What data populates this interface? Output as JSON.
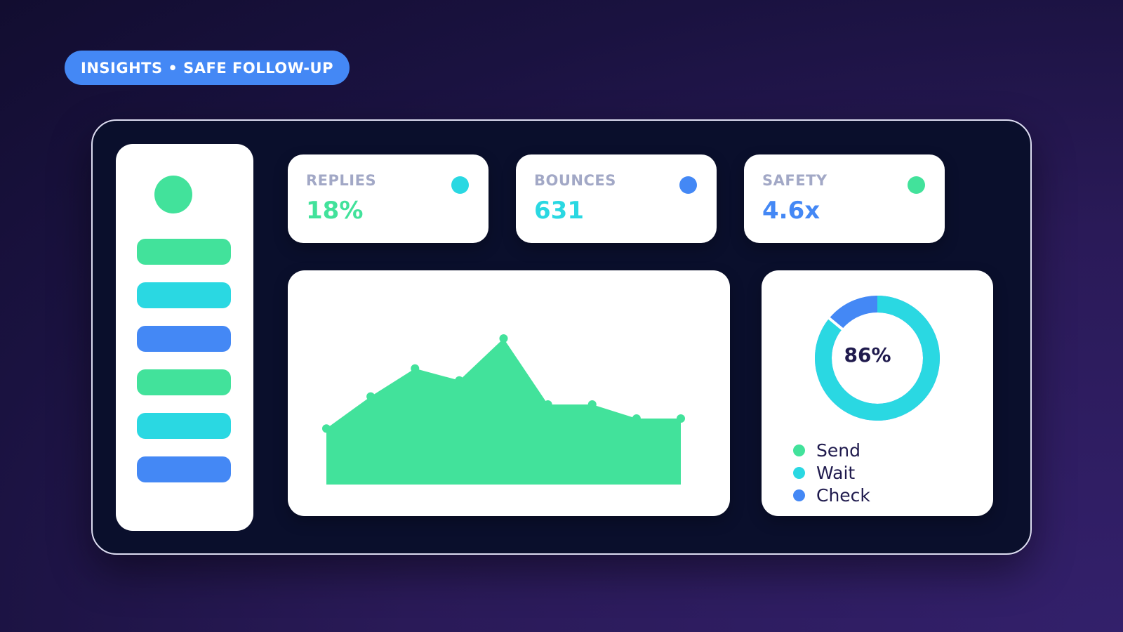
{
  "header": {
    "tag_label": "INSIGHTS • SAFE FOLLOW-UP"
  },
  "colors": {
    "green": "#42e29b",
    "cyan": "#2ad8e2",
    "blue": "#4488f5",
    "navy_text": "#1f1a4d",
    "label_gray": "#a2a8c6",
    "panel_bg": "#0a0f2c"
  },
  "sidebar": {
    "avatar_icon": "avatar-circle",
    "items": [
      {
        "color": "#42e29b"
      },
      {
        "color": "#2ad8e2"
      },
      {
        "color": "#4488f5"
      },
      {
        "color": "#42e29b"
      },
      {
        "color": "#2ad8e2"
      },
      {
        "color": "#4488f5"
      }
    ]
  },
  "stats": [
    {
      "label": "REPLIES",
      "value": "18%",
      "value_color": "#42e29b",
      "dot_color": "#2ad8e2"
    },
    {
      "label": "BOUNCES",
      "value": "631",
      "value_color": "#2ad8e2",
      "dot_color": "#4488f5"
    },
    {
      "label": "SAFETY",
      "value": "4.6x",
      "value_color": "#4488f5",
      "dot_color": "#42e29b"
    }
  ],
  "chart_data": {
    "type": "area",
    "x": [
      1,
      2,
      3,
      4,
      5,
      6,
      7,
      8,
      9
    ],
    "values": [
      28,
      44,
      58,
      52,
      73,
      40,
      40,
      33,
      33
    ],
    "ylim": [
      0,
      100
    ],
    "fill_color": "#42e29b",
    "grid": false,
    "title": "",
    "xlabel": "",
    "ylabel": ""
  },
  "donut": {
    "center_label": "86%",
    "percent": 86,
    "main_color": "#2ad8e2",
    "rest_color": "#4488f5",
    "legend": [
      {
        "label": "Send",
        "color": "#42e29b"
      },
      {
        "label": "Wait",
        "color": "#2ad8e2"
      },
      {
        "label": "Check",
        "color": "#4488f5"
      }
    ]
  }
}
